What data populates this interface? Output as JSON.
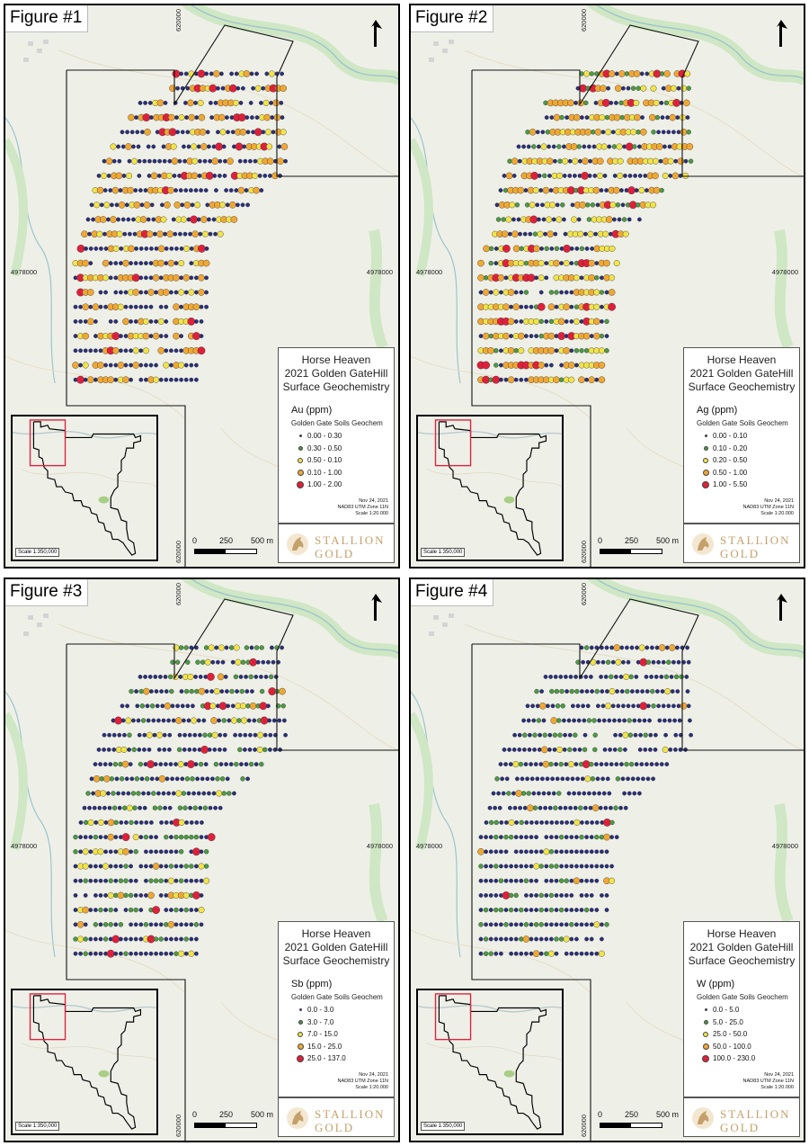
{
  "panels": [
    {
      "figure_label": "Figure #1",
      "coord_top": "620000",
      "coord_left": "4978000",
      "coord_right": "4978000",
      "coord_bottom": "620000",
      "legend": {
        "title_line1": "Horse Heaven",
        "title_line2": "2021 Golden GateHill",
        "title_line3": "Surface Geochemistry",
        "element": "Au (ppm)",
        "subtitle": "Golden Gate Soils Geochem",
        "classes": [
          "0.00 - 0.30",
          "0.30 - 0.50",
          "0.50 - 0.10",
          "0.10 - 1.00",
          "1.00 - 2.00"
        ],
        "date": "Nov 24, 2021",
        "datum": "NAD83 UTM Zone 11N",
        "scale": "Scale 1:20.000"
      },
      "inset_scale": "Scale 1:350,000",
      "scalebar": {
        "zero": "0",
        "mid": "250",
        "end": "500 m"
      },
      "pattern": "au"
    },
    {
      "figure_label": "Figure #2",
      "coord_top": "620000",
      "coord_left": "4978000",
      "coord_right": "4978000",
      "coord_bottom": "620000",
      "legend": {
        "title_line1": "Horse Heaven",
        "title_line2": "2021 Golden GateHill",
        "title_line3": "Surface Geochemistry",
        "element": "Ag (ppm)",
        "subtitle": "Golden Gate Soils Geochem",
        "classes": [
          "0.00 - 0.10",
          "0.10 - 0.20",
          "0.20 - 0.50",
          "0.50 - 1.00",
          "1.00 - 5.50"
        ],
        "date": "Nov 24, 2021",
        "datum": "NAD83 UTM Zone 11N",
        "scale": "Scale 1:20.000"
      },
      "inset_scale": "Scale 1:350,000",
      "scalebar": {
        "zero": "0",
        "mid": "250",
        "end": "500 m"
      },
      "pattern": "ag"
    },
    {
      "figure_label": "Figure #3",
      "coord_top": "620000",
      "coord_left": "4978000",
      "coord_right": "4978000",
      "coord_bottom": "620000",
      "legend": {
        "title_line1": "Horse Heaven",
        "title_line2": "2021 Golden GateHill",
        "title_line3": "Surface Geochemistry",
        "element": "Sb (ppm)",
        "subtitle": "Golden Gate Soils Geochem",
        "classes": [
          "0.0 - 3.0",
          "3.0 - 7.0",
          "7.0 - 15.0",
          "15.0 - 25.0",
          "25.0 - 137.0"
        ],
        "date": "Nov 24, 2021",
        "datum": "NAD83 UTM Zone 11N",
        "scale": "Scale 1:20.000"
      },
      "inset_scale": "Scale 1:350,000",
      "scalebar": {
        "zero": "0",
        "mid": "250",
        "end": "500 m"
      },
      "pattern": "sb"
    },
    {
      "figure_label": "Figure #4",
      "coord_top": "620000",
      "coord_left": "4978000",
      "coord_right": "4978000",
      "coord_bottom": "620000",
      "legend": {
        "title_line1": "Horse Heaven",
        "title_line2": "2021 Golden GateHill",
        "title_line3": "Surface Geochemistry",
        "element": "W (ppm)",
        "subtitle": "Golden Gate Soils Geochem",
        "classes": [
          "0.0 - 5.0",
          "5.0 - 25.0",
          "25.0 - 50.0",
          "50.0 - 100.0",
          "100.0 - 230.0"
        ],
        "date": "Nov 24, 2021",
        "datum": "NAD83 UTM Zone 11N",
        "scale": "Scale 1:20.000"
      },
      "inset_scale": "Scale 1:350,000",
      "scalebar": {
        "zero": "0",
        "mid": "250",
        "end": "500 m"
      },
      "pattern": "w"
    }
  ],
  "logo": {
    "line1": "STALLION",
    "line2": "GOLD"
  },
  "class_colors": [
    "#2a2f7a",
    "#4d9a44",
    "#f2e34a",
    "#f0a733",
    "#e0203a"
  ],
  "icons": {
    "north_arrow": "north-arrow-icon",
    "logo": "horse-head-icon"
  }
}
